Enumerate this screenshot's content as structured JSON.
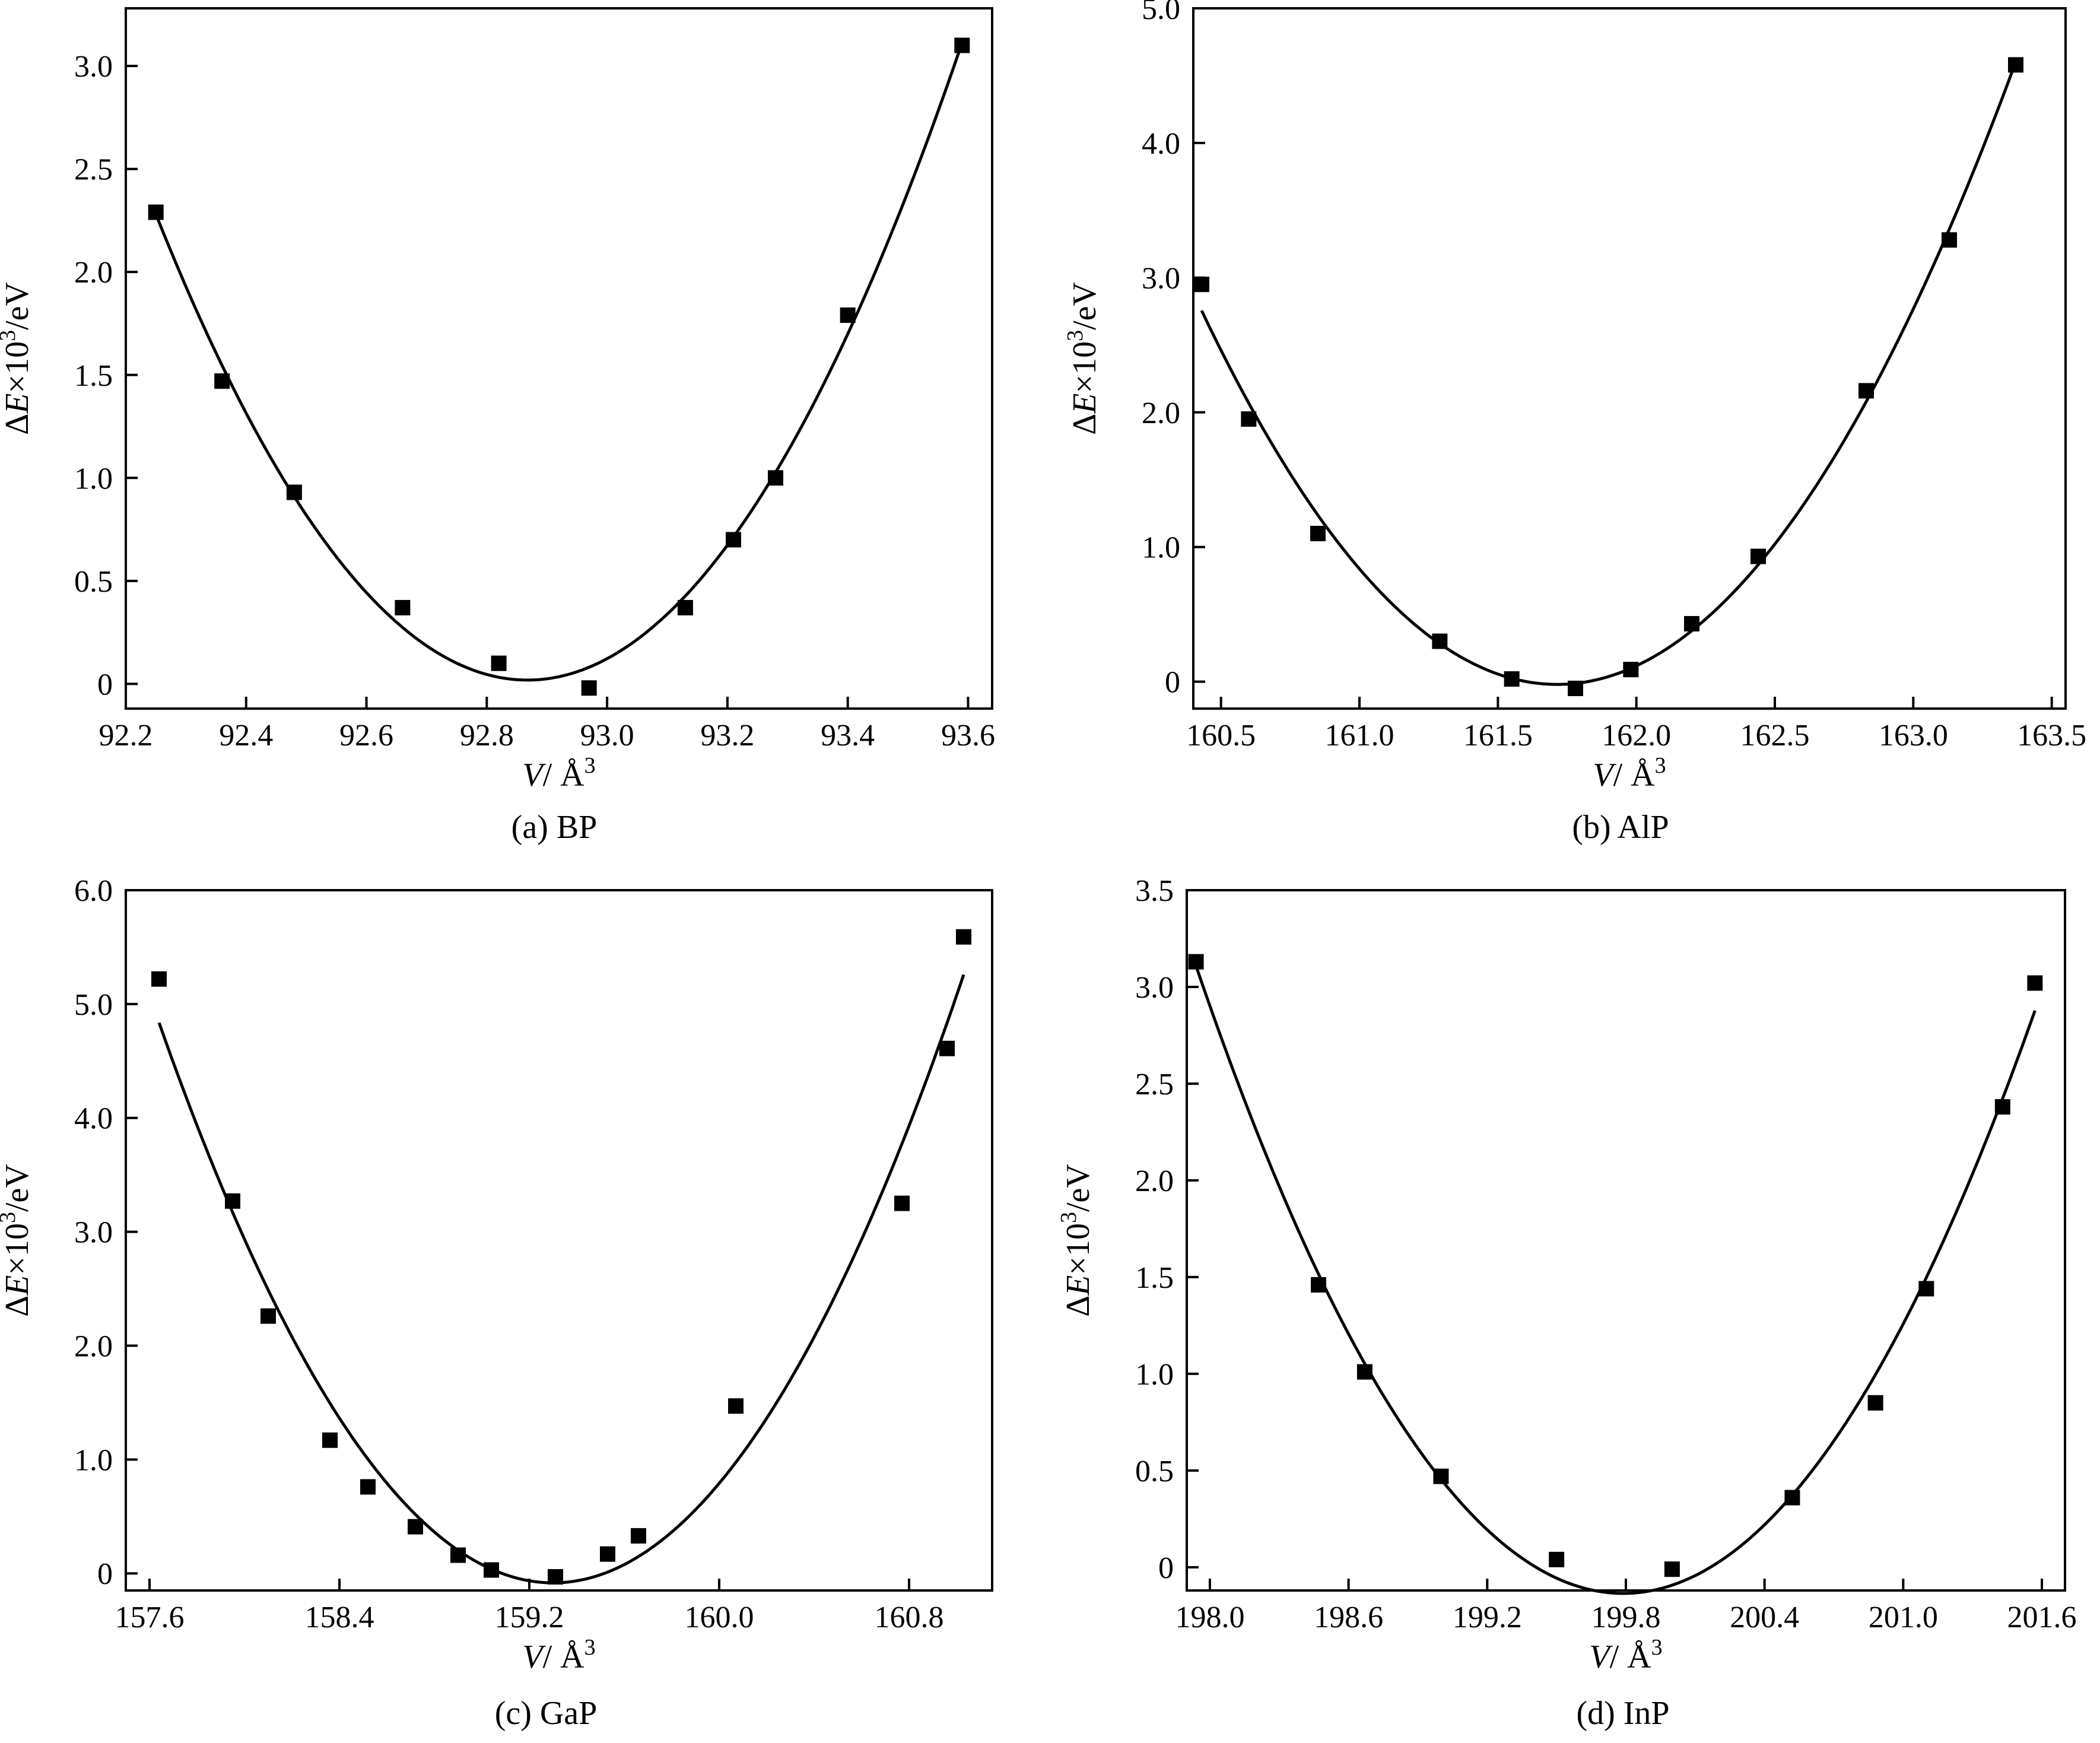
{
  "colors": {
    "ink": "#000000",
    "background": "#ffffff"
  },
  "chart_data": [
    {
      "type": "scatter",
      "caption": "(a)  BP",
      "xlabel": {
        "var": "V",
        "unit": "/ Å",
        "sup": "3"
      },
      "ylabel": {
        "prefix": "Δ",
        "var": "E",
        "rest": "×10",
        "sup": "3",
        "unit": "/eV"
      },
      "xlim": [
        92.2,
        93.64
      ],
      "ylim": [
        -0.12,
        3.28
      ],
      "xticks": [
        92.2,
        92.4,
        92.6,
        92.8,
        93.0,
        93.2,
        93.4,
        93.6
      ],
      "xtick_labels": [
        "92.2",
        "92.4",
        "92.6",
        "92.8",
        "93.0",
        "93.2",
        "93.4",
        "93.6"
      ],
      "yticks": [
        0,
        0.5,
        1.0,
        1.5,
        2.0,
        2.5,
        3.0
      ],
      "ytick_labels": [
        "0",
        "0.5",
        "1.0",
        "1.5",
        "2.0",
        "2.5",
        "3.0"
      ],
      "marker": "square",
      "fit_line": true,
      "x": [
        92.25,
        92.36,
        92.48,
        92.66,
        92.82,
        92.97,
        93.13,
        93.21,
        93.28,
        93.4,
        93.59
      ],
      "y": [
        2.29,
        1.47,
        0.93,
        0.37,
        0.1,
        -0.02,
        0.37,
        0.7,
        1.0,
        1.79,
        3.1
      ]
    },
    {
      "type": "scatter",
      "caption": "(b)  AlP",
      "xlabel": {
        "var": "V",
        "unit": "/ Å",
        "sup": "3"
      },
      "ylabel": {
        "prefix": "Δ",
        "var": "E",
        "rest": "×10",
        "sup": "3",
        "unit": "/eV"
      },
      "xlim": [
        160.4,
        163.55
      ],
      "ylim": [
        -0.2,
        5.0
      ],
      "xticks": [
        160.5,
        161.0,
        161.5,
        162.0,
        162.5,
        163.0,
        163.5
      ],
      "xtick_labels": [
        "160.5",
        "161.0",
        "161.5",
        "162.0",
        "162.5",
        "163.0",
        "163.5"
      ],
      "yticks": [
        0,
        1.0,
        2.0,
        3.0,
        4.0,
        5.0
      ],
      "ytick_labels": [
        "0",
        "1.0",
        "2.0",
        "3.0",
        "4.0",
        "5.0"
      ],
      "marker": "square",
      "fit_line": true,
      "x": [
        160.43,
        160.6,
        160.85,
        161.29,
        161.55,
        161.78,
        161.98,
        162.2,
        162.44,
        162.83,
        163.13,
        163.37
      ],
      "y": [
        2.95,
        1.95,
        1.1,
        0.3,
        0.02,
        -0.05,
        0.09,
        0.43,
        0.93,
        2.16,
        3.28,
        4.58
      ]
    },
    {
      "type": "scatter",
      "caption": "(c)  GaP",
      "xlabel": {
        "var": "V",
        "unit": "/ Å",
        "sup": "3"
      },
      "ylabel": {
        "prefix": "Δ",
        "var": "E",
        "rest": "×10",
        "sup": "3",
        "unit": "/eV"
      },
      "xlim": [
        157.5,
        161.15
      ],
      "ylim": [
        -0.15,
        6.0
      ],
      "xticks": [
        157.6,
        158.4,
        159.2,
        160.0,
        160.8
      ],
      "xtick_labels": [
        "157.6",
        "158.4",
        "159.2",
        "160.0",
        "160.8"
      ],
      "yticks": [
        0,
        1.0,
        2.0,
        3.0,
        4.0,
        5.0,
        6.0
      ],
      "ytick_labels": [
        "0",
        "1.0",
        "2.0",
        "3.0",
        "4.0",
        "5.0",
        "6.0"
      ],
      "marker": "square",
      "fit_line": true,
      "x": [
        157.64,
        157.95,
        158.1,
        158.36,
        158.52,
        158.72,
        158.9,
        159.04,
        159.31,
        159.53,
        159.66,
        160.07,
        160.77,
        160.96,
        161.03
      ],
      "y": [
        5.22,
        3.27,
        2.26,
        1.17,
        0.76,
        0.41,
        0.16,
        0.03,
        -0.03,
        0.17,
        0.33,
        1.47,
        3.25,
        4.61,
        5.59
      ]
    },
    {
      "type": "scatter",
      "caption": "(d)  InP",
      "xlabel": {
        "var": "V",
        "unit": "/ Å",
        "sup": "3"
      },
      "ylabel": {
        "prefix": "Δ",
        "var": "E",
        "rest": "×10",
        "sup": "3",
        "unit": "/eV"
      },
      "xlim": [
        197.9,
        201.7
      ],
      "ylim": [
        -0.12,
        3.5
      ],
      "xticks": [
        198.0,
        198.6,
        199.2,
        199.8,
        200.4,
        201.0,
        201.6
      ],
      "xtick_labels": [
        "198.0",
        "198.6",
        "199.2",
        "199.8",
        "200.4",
        "201.0",
        "201.6"
      ],
      "yticks": [
        0,
        0.5,
        1.0,
        1.5,
        2.0,
        2.5,
        3.0,
        3.5
      ],
      "ytick_labels": [
        "0",
        "0.5",
        "1.0",
        "1.5",
        "2.0",
        "2.5",
        "3.0",
        "3.5"
      ],
      "marker": "square",
      "fit_line": true,
      "x": [
        197.94,
        198.47,
        198.67,
        199.0,
        199.5,
        200.0,
        200.52,
        200.88,
        201.1,
        201.43,
        201.57
      ],
      "y": [
        3.13,
        1.46,
        1.01,
        0.47,
        0.04,
        -0.01,
        0.36,
        0.85,
        1.44,
        2.38,
        3.02
      ]
    }
  ]
}
